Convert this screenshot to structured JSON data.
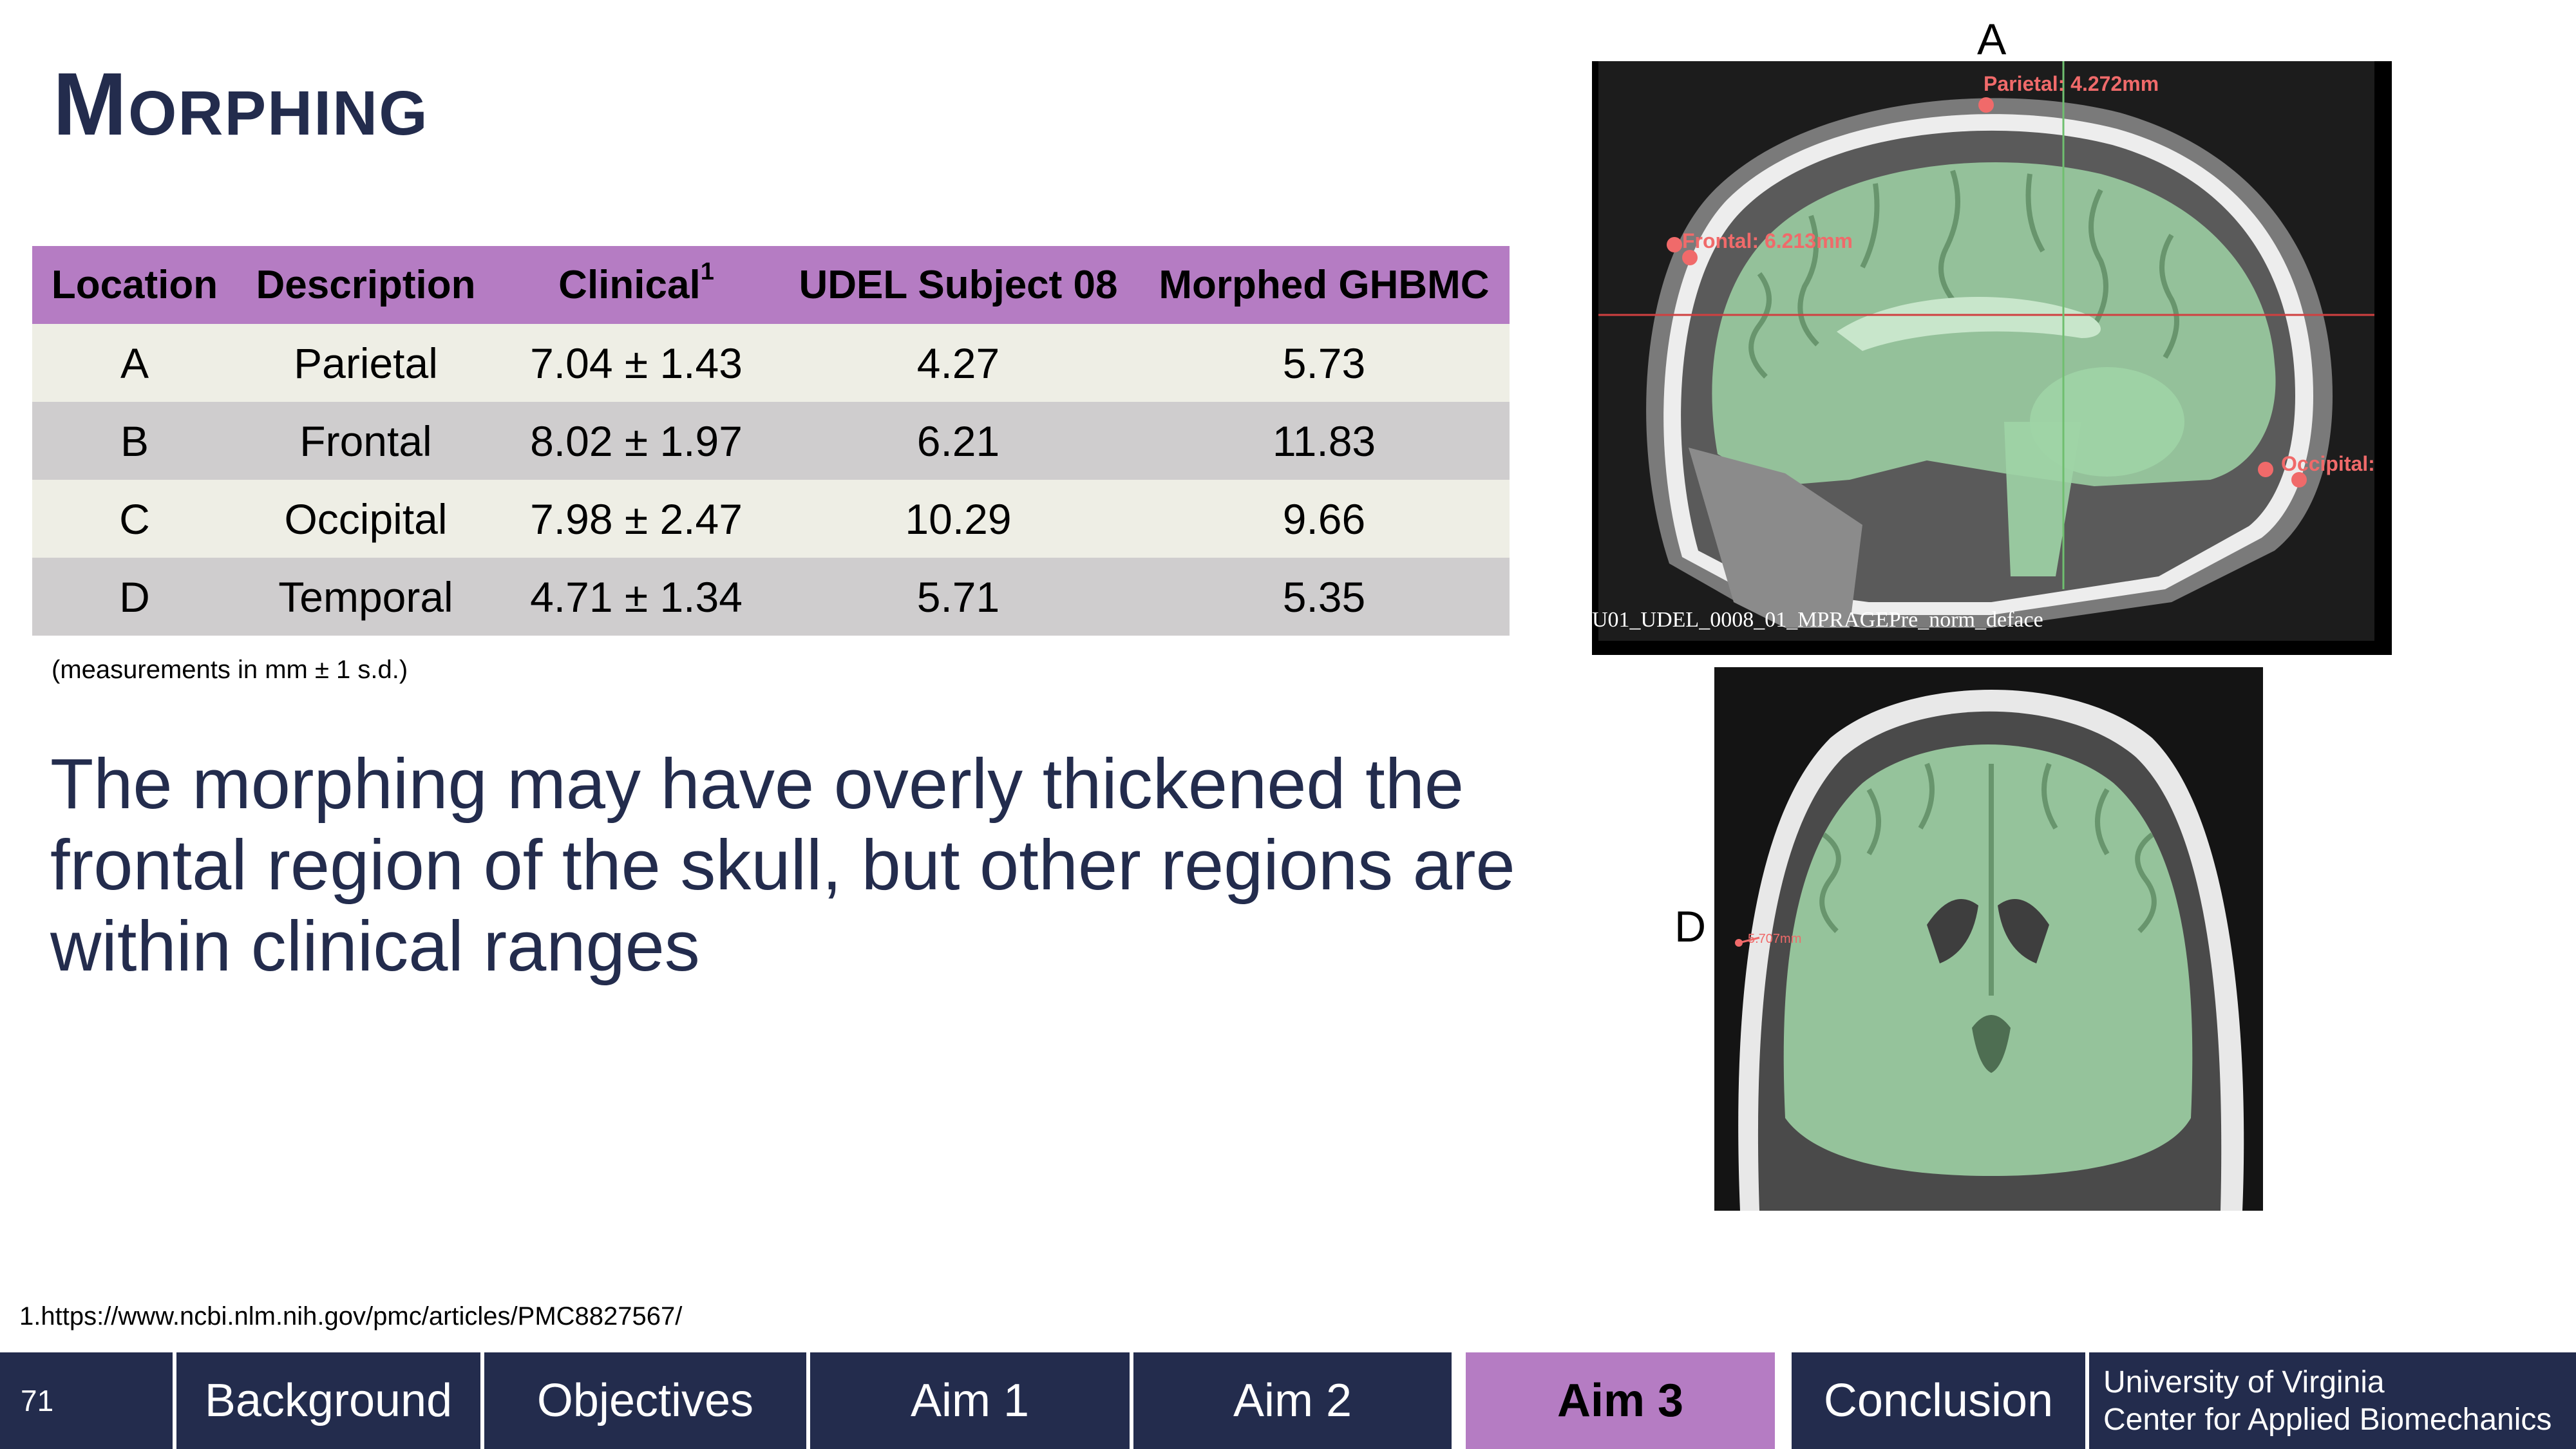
{
  "title": "Morphing",
  "table": {
    "headers": [
      "Location",
      "Description",
      "Clinical",
      "UDEL Subject 08",
      "Morphed GHBMC"
    ],
    "clinical_superscript": "1",
    "rows": [
      [
        "A",
        "Parietal",
        "7.04 ± 1.43",
        "4.27",
        "5.73"
      ],
      [
        "B",
        "Frontal",
        "8.02 ± 1.97",
        "6.21",
        "11.83"
      ],
      [
        "C",
        "Occipital",
        "7.98 ± 2.47",
        "10.29",
        "9.66"
      ],
      [
        "D",
        "Temporal",
        "4.71 ± 1.34",
        "5.71",
        "5.35"
      ]
    ]
  },
  "units_note": "(measurements in mm ± 1 s.d.)",
  "body_text": "The morphing may have overly thickened the frontal region of the skull, but other regions are within clinical ranges",
  "reference": "1.https://www.ncbi.nlm.nih.gov/pmc/articles/PMC8827567/",
  "images": {
    "label_a": "A",
    "label_d": "D",
    "sagittal": {
      "measure_parietal": "Parietal: 4.272mm",
      "measure_frontal": "Frontal: 6.213mm",
      "measure_occipital": "Occipital:",
      "caption": "U01_UDEL_0008_01_MPRAGEPre_norm_deface"
    },
    "coronal": {
      "measure_temporal": "5.707mm"
    }
  },
  "footer": {
    "slide_number": "71",
    "nav": [
      "Background",
      "Objectives",
      "Aim 1",
      "Aim 2",
      "Aim 3",
      "Conclusion"
    ],
    "active": "Aim 3",
    "institution_line1": "University of Virginia",
    "institution_line2": "Center for Applied Biomechanics"
  },
  "colors": {
    "navy": "#232c4d",
    "purple": "#b57cc3",
    "row_light": "#eeeee5",
    "row_dark": "#cfcdce",
    "brain_overlay": "#9fd4a6",
    "measure_red": "#f06a6a"
  }
}
